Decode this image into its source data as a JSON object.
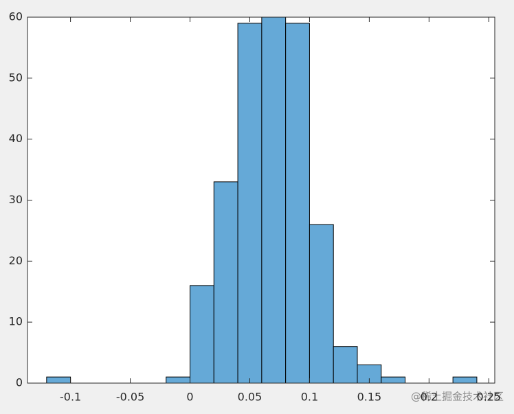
{
  "chart_data": {
    "type": "histogram",
    "bins": [
      -0.12,
      -0.1,
      -0.08,
      -0.06,
      -0.04,
      -0.02,
      0,
      0.02,
      0.04,
      0.06,
      0.08,
      0.1,
      0.12,
      0.14,
      0.16,
      0.18,
      0.2,
      0.22,
      0.24
    ],
    "values": [
      1,
      0,
      0,
      0,
      0,
      1,
      16,
      33,
      59,
      60,
      59,
      26,
      6,
      3,
      1,
      0,
      0,
      1
    ],
    "color": "#65a9d7",
    "xlim": [
      -0.136,
      0.255
    ],
    "xticks": [
      -0.1,
      -0.05,
      0,
      0.05,
      0.1,
      0.15,
      0.2,
      0.25
    ],
    "ylim": [
      0,
      60
    ],
    "yticks": [
      0,
      10,
      20,
      30,
      40,
      50,
      60
    ],
    "watermark": "@稀土掘金技术社区"
  }
}
